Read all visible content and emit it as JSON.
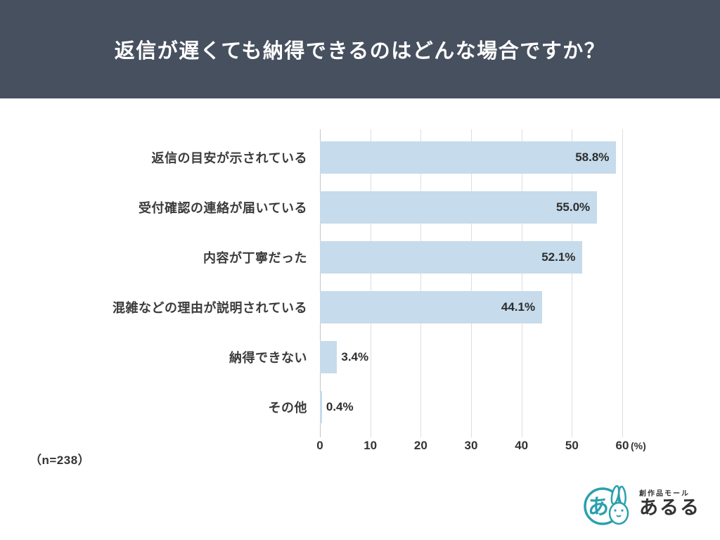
{
  "header": {
    "title": "返信が遅くても納得できるのはどんな場合ですか？"
  },
  "chart_data": {
    "type": "bar",
    "orientation": "horizontal",
    "title": "返信が遅くても納得できるのはどんな場合ですか？",
    "categories": [
      "返信の目安が示されている",
      "受付確認の連絡が届いている",
      "内容が丁寧だった",
      "混雑などの理由が説明されている",
      "納得できない",
      "その他"
    ],
    "values": [
      58.8,
      55.0,
      52.1,
      44.1,
      3.4,
      0.4
    ],
    "value_labels": [
      "58.8%",
      "55.0%",
      "52.1%",
      "44.1%",
      "3.4%",
      "0.4%"
    ],
    "xlim": [
      0,
      60
    ],
    "xticks": [
      0,
      10,
      20,
      30,
      40,
      50,
      60
    ],
    "x_unit": "(%)",
    "xlabel": "",
    "ylabel": "",
    "grid": true,
    "legend": "none",
    "bar_color": "#c6dbeb",
    "header_color": "#47505f"
  },
  "footnote": "（n=238）",
  "logo": {
    "brand_small": "創作品モール",
    "brand_large": "あるる",
    "color": "#2aa0ad"
  }
}
